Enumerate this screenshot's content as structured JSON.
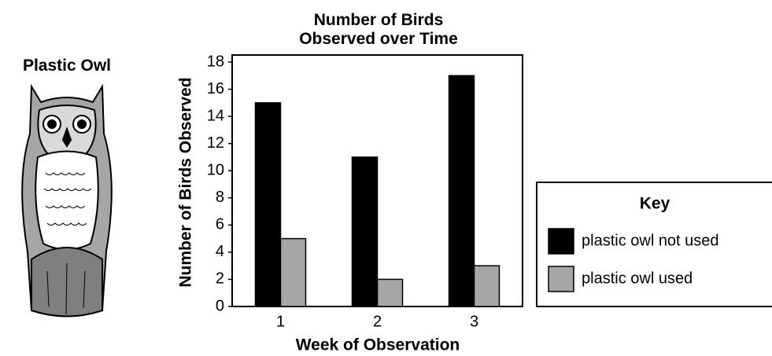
{
  "illustration": {
    "label": "Plastic Owl"
  },
  "chart_data": {
    "type": "bar",
    "title": "Number of Birds Observed over Time",
    "x_label": "Week of Observation",
    "y_label": "Number of Birds Observed",
    "categories": [
      "1",
      "2",
      "3"
    ],
    "series": [
      {
        "name": "plastic owl not used",
        "color": "#000000",
        "values": [
          15,
          11,
          17
        ]
      },
      {
        "name": "plastic owl used",
        "color": "#a6a6a6",
        "values": [
          5,
          2,
          3
        ]
      }
    ],
    "ylim": [
      0,
      18
    ],
    "yticks": [
      0,
      2,
      4,
      6,
      8,
      10,
      12,
      14,
      16,
      18
    ],
    "legend_title": "Key",
    "legend_position": "right"
  }
}
